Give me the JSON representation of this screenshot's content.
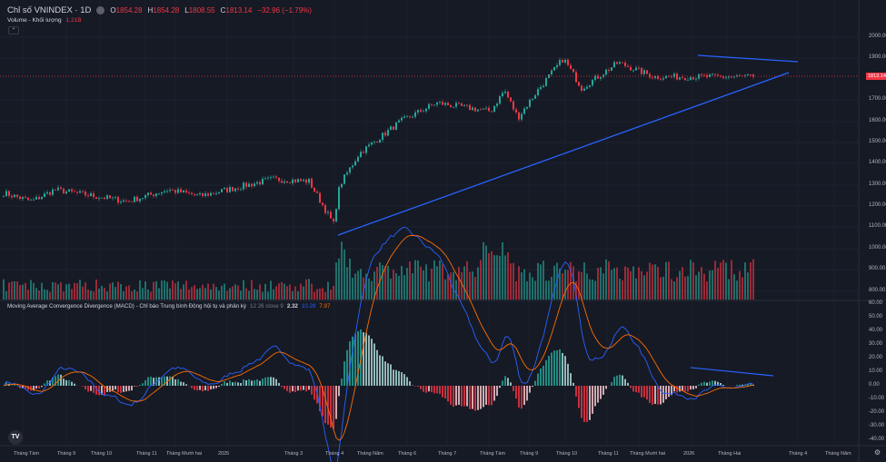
{
  "header": {
    "title": "Chỉ số VNINDEX · 1D",
    "open_label": "O",
    "open": "1854.28",
    "high_label": "H",
    "high": "1854.28",
    "low_label": "L",
    "low": "1808.55",
    "close_label": "C",
    "close": "1813.14",
    "change": "−32.96 (−1.79%)"
  },
  "volume": {
    "label": "Volume - Khối lượng",
    "value": "1.21B"
  },
  "collapse_icon": "chevron-up-icon",
  "macd": {
    "label": "Moving Average Convergence Divergence (MACD) - Chỉ báo Trung bình Động hội tụ và phân kỳ",
    "params": "12 26 close 9",
    "hist": "2.32",
    "macd": "10.29",
    "signal": "7.97"
  },
  "price_axis": [
    "2000.00",
    "1900.00",
    "1700.00",
    "1600.00",
    "1500.00",
    "1400.00",
    "1300.00",
    "1200.00",
    "1100.00",
    "1000.00",
    "900.00",
    "800.00"
  ],
  "last_price": "1813.14",
  "macd_axis": [
    "60.00",
    "50.00",
    "40.00",
    "30.00",
    "20.00",
    "10.00",
    "0.00",
    "-10.00",
    "-20.00",
    "-30.00",
    "-40.00"
  ],
  "time_axis": [
    "Tháng Tám",
    "Tháng 9",
    "Tháng 10",
    "Tháng 11",
    "Tháng Mười hai",
    "2025",
    "Tháng 3",
    "Tháng 4",
    "Tháng Năm",
    "Tháng 6",
    "Tháng 7",
    "Tháng Tám",
    "Tháng 9",
    "Tháng 10",
    "Tháng 11",
    "Tháng Mười hai",
    "2026",
    "Tháng Hai",
    "Tháng 4",
    "Tháng Năm"
  ],
  "logo": "TV",
  "colors": {
    "up": "#26a69a",
    "down": "#f23645",
    "trend": "#2962ff",
    "macd": "#2962ff",
    "signal": "#ff6d00",
    "bg": "#161a25"
  },
  "chart_data": {
    "type": "candlestick",
    "title": "Chỉ số VNINDEX · 1D",
    "ylim": [
      800,
      2000
    ],
    "approx_close_path": [
      [
        "2024-08",
        1270
      ],
      [
        "2024-09",
        1225
      ],
      [
        "2024-10",
        1280
      ],
      [
        "2024-11",
        1225
      ],
      [
        "2024-12",
        1280
      ],
      [
        "2025-01",
        1250
      ],
      [
        "2025-02",
        1290
      ],
      [
        "2025-03",
        1330
      ],
      [
        "2025-04-early",
        1320
      ],
      [
        "2025-04-low",
        1110
      ],
      [
        "2025-05",
        1250
      ],
      [
        "2025-06",
        1310
      ],
      [
        "2025-07",
        1450
      ],
      [
        "2025-08",
        1600
      ],
      [
        "2025-08-peak",
        1690
      ],
      [
        "2025-09",
        1650
      ],
      [
        "2025-10",
        1750
      ],
      [
        "2025-11",
        1620
      ],
      [
        "2025-12",
        1740
      ],
      [
        "2026-01",
        1900
      ],
      [
        "2026-02",
        1760
      ],
      [
        "2026-02-peak",
        1880
      ],
      [
        "2026-03",
        1813
      ]
    ]
  }
}
